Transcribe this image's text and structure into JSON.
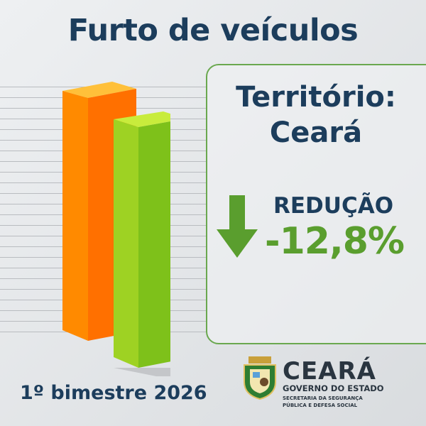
{
  "title": "Furto de veículos",
  "territory": {
    "label": "Território:",
    "name": "Ceará"
  },
  "change": {
    "label": "REDUÇÃO",
    "value": "-12,8%",
    "direction": "down",
    "color": "#5a9e2e"
  },
  "period": "1º bimestre 2026",
  "logo": {
    "name": "CEARÁ",
    "subtitle": "GOVERNO DO ESTADO",
    "secretaria_line1": "SECRETARIA DA SEGURANÇA",
    "secretaria_line2": "PÚBLICA E DEFESA SOCIAL"
  },
  "colors": {
    "navy": "#1c3d5c",
    "green": "#5a9e2e",
    "orange": "#ff7a00"
  }
}
